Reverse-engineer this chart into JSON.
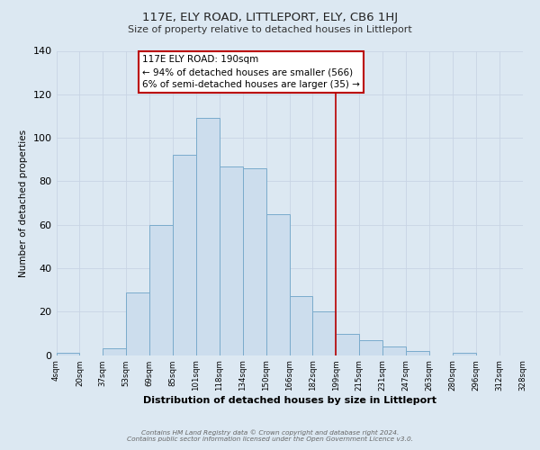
{
  "title": "117E, ELY ROAD, LITTLEPORT, ELY, CB6 1HJ",
  "subtitle": "Size of property relative to detached houses in Littleport",
  "xlabel": "Distribution of detached houses by size in Littleport",
  "ylabel": "Number of detached properties",
  "bin_labels": [
    "4sqm",
    "20sqm",
    "37sqm",
    "53sqm",
    "69sqm",
    "85sqm",
    "101sqm",
    "118sqm",
    "134sqm",
    "150sqm",
    "166sqm",
    "182sqm",
    "199sqm",
    "215sqm",
    "231sqm",
    "247sqm",
    "263sqm",
    "280sqm",
    "296sqm",
    "312sqm",
    "328sqm"
  ],
  "bar_values": [
    1,
    0,
    3,
    29,
    60,
    92,
    109,
    87,
    86,
    65,
    27,
    20,
    10,
    7,
    4,
    2,
    0,
    1,
    0,
    0
  ],
  "bar_color": "#ccdded",
  "bar_edge_color": "#7aabcc",
  "vline_x": 11.5,
  "vline_color": "#bb0000",
  "annotation_title": "117E ELY ROAD: 190sqm",
  "annotation_line1": "← 94% of detached houses are smaller (566)",
  "annotation_line2": "6% of semi-detached houses are larger (35) →",
  "annotation_box_color": "#ffffff",
  "annotation_box_edge": "#bb0000",
  "footer_line1": "Contains HM Land Registry data © Crown copyright and database right 2024.",
  "footer_line2": "Contains public sector information licensed under the Open Government Licence v3.0.",
  "ylim": [
    0,
    140
  ],
  "yticks": [
    0,
    20,
    40,
    60,
    80,
    100,
    120,
    140
  ],
  "grid_color": "#c8d4e4",
  "background_color": "#dce8f2"
}
